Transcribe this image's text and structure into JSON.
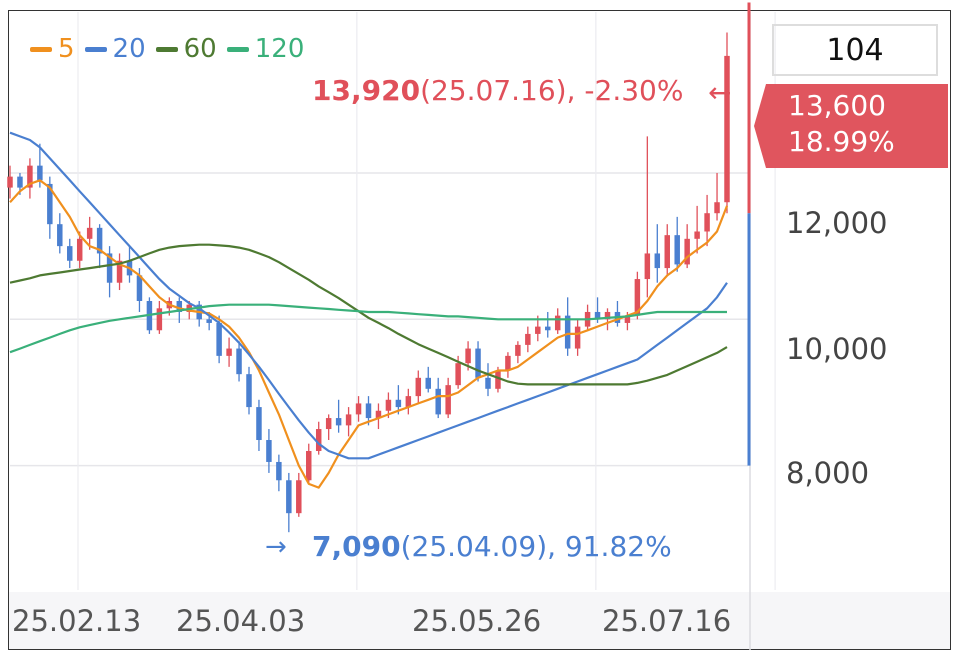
{
  "legend": [
    {
      "label": "5",
      "color": "#f0901e"
    },
    {
      "label": "20",
      "color": "#4a7fd0"
    },
    {
      "label": "60",
      "color": "#4e7a32"
    },
    {
      "label": "120",
      "color": "#3ab07a"
    }
  ],
  "high_annotation": {
    "value": "13,920",
    "detail": "(25.07.16), -2.30%",
    "arrow": "←"
  },
  "low_annotation": {
    "value": "7,090",
    "detail": "(25.04.09), 91.82%",
    "arrow": "→"
  },
  "y_box": "104",
  "price_tag": {
    "price": "13,600",
    "change": "18.99%"
  },
  "y_ticks": [
    "12,000",
    "10,000",
    "8,000"
  ],
  "x_ticks": [
    "25.02.13",
    "25.04.03",
    "25.05.26",
    "25.07.16"
  ],
  "chart_data": {
    "type": "candlestick",
    "x_ticks": [
      "25.02.13",
      "25.04.03",
      "25.05.26",
      "25.07.16"
    ],
    "y_ticks": [
      8000,
      10000,
      12000
    ],
    "ylim": [
      6300,
      14200
    ],
    "high": {
      "value": 13920,
      "date": "25.07.16",
      "change_pct": -2.3
    },
    "low": {
      "value": 7090,
      "date": "25.04.09",
      "change_pct": 91.82
    },
    "last_price": 13600,
    "last_change_pct": 18.99,
    "ohlc": [
      [
        11800,
        12100,
        11650,
        11950
      ],
      [
        11950,
        12000,
        11700,
        11800
      ],
      [
        11800,
        12200,
        11650,
        12100
      ],
      [
        12100,
        12400,
        11800,
        11900
      ],
      [
        11850,
        11950,
        11100,
        11300
      ],
      [
        11300,
        11450,
        10900,
        11000
      ],
      [
        11000,
        11100,
        10700,
        10800
      ],
      [
        10800,
        11200,
        10700,
        11100
      ],
      [
        11100,
        11400,
        10950,
        11250
      ],
      [
        11250,
        11300,
        10700,
        10900
      ],
      [
        10900,
        11000,
        10300,
        10500
      ],
      [
        10500,
        10900,
        10400,
        10800
      ],
      [
        10800,
        11000,
        10500,
        10600
      ],
      [
        10600,
        10700,
        10100,
        10250
      ],
      [
        10250,
        10300,
        9800,
        9850
      ],
      [
        9850,
        10250,
        9800,
        10150
      ],
      [
        10150,
        10300,
        10050,
        10250
      ],
      [
        10250,
        10300,
        9950,
        10100
      ],
      [
        10100,
        10250,
        10000,
        10200
      ],
      [
        10200,
        10250,
        9900,
        10000
      ],
      [
        10000,
        10100,
        9850,
        9950
      ],
      [
        9950,
        10050,
        9400,
        9500
      ],
      [
        9500,
        9750,
        9350,
        9600
      ],
      [
        9600,
        9700,
        9150,
        9250
      ],
      [
        9250,
        9350,
        8700,
        8800
      ],
      [
        8800,
        8900,
        8200,
        8350
      ],
      [
        8350,
        8500,
        7900,
        8050
      ],
      [
        8050,
        8150,
        7650,
        7800
      ],
      [
        7800,
        7900,
        7090,
        7350
      ],
      [
        7350,
        7900,
        7300,
        7800
      ],
      [
        7800,
        8300,
        7750,
        8200
      ],
      [
        8200,
        8600,
        8150,
        8500
      ],
      [
        8500,
        8700,
        8350,
        8650
      ],
      [
        8650,
        8900,
        8450,
        8550
      ],
      [
        8550,
        8800,
        8400,
        8700
      ],
      [
        8700,
        8950,
        8600,
        8850
      ],
      [
        8850,
        8950,
        8550,
        8650
      ],
      [
        8650,
        8850,
        8500,
        8750
      ],
      [
        8750,
        9000,
        8650,
        8900
      ],
      [
        8900,
        9100,
        8700,
        8800
      ],
      [
        8800,
        9050,
        8700,
        8950
      ],
      [
        8950,
        9300,
        8850,
        9200
      ],
      [
        9200,
        9350,
        9000,
        9050
      ],
      [
        9050,
        9200,
        8650,
        8700
      ],
      [
        8700,
        9200,
        8650,
        9100
      ],
      [
        9100,
        9500,
        9050,
        9400
      ],
      [
        9400,
        9700,
        9300,
        9600
      ],
      [
        9600,
        9700,
        9150,
        9200
      ],
      [
        9200,
        9400,
        8950,
        9050
      ],
      [
        9050,
        9350,
        9000,
        9300
      ],
      [
        9300,
        9550,
        9200,
        9500
      ],
      [
        9500,
        9700,
        9400,
        9650
      ],
      [
        9650,
        9900,
        9550,
        9800
      ],
      [
        9800,
        10050,
        9700,
        9900
      ],
      [
        9900,
        10100,
        9750,
        9850
      ],
      [
        9850,
        10150,
        9800,
        10050
      ],
      [
        10050,
        10300,
        9500,
        9600
      ],
      [
        9600,
        10000,
        9500,
        9900
      ],
      [
        9900,
        10200,
        9850,
        10100
      ],
      [
        10100,
        10300,
        9950,
        10000
      ],
      [
        10000,
        10150,
        9850,
        10100
      ],
      [
        10100,
        10250,
        9900,
        9950
      ],
      [
        9950,
        10100,
        9850,
        10050
      ],
      [
        10050,
        10650,
        10000,
        10550
      ],
      [
        10550,
        12500,
        10300,
        10900
      ],
      [
        10900,
        11300,
        10500,
        10700
      ],
      [
        10700,
        11300,
        10600,
        11150
      ],
      [
        11150,
        11400,
        10650,
        10750
      ],
      [
        10750,
        11300,
        10700,
        11100
      ],
      [
        11100,
        11550,
        10900,
        11200
      ],
      [
        11200,
        11700,
        11000,
        11450
      ],
      [
        11450,
        12000,
        11350,
        11600
      ],
      [
        11600,
        13920,
        11450,
        13600
      ]
    ],
    "series": [
      {
        "name": "5",
        "color": "#f0901e",
        "values": [
          11600,
          11750,
          11850,
          11900,
          11800,
          11600,
          11400,
          11150,
          11000,
          10950,
          10850,
          10750,
          10700,
          10600,
          10450,
          10300,
          10200,
          10150,
          10120,
          10100,
          10080,
          10000,
          9900,
          9750,
          9550,
          9300,
          9000,
          8700,
          8350,
          8000,
          7750,
          7700,
          7900,
          8150,
          8350,
          8550,
          8600,
          8650,
          8700,
          8750,
          8800,
          8850,
          8900,
          8950,
          8950,
          9000,
          9100,
          9200,
          9250,
          9300,
          9300,
          9350,
          9450,
          9550,
          9650,
          9750,
          9800,
          9800,
          9850,
          9900,
          9950,
          10000,
          10050,
          10100,
          10250,
          10450,
          10600,
          10700,
          10850,
          10950,
          11050,
          11200,
          11550
        ]
      },
      {
        "name": "20",
        "color": "#4a7fd0",
        "values": [
          12550,
          12500,
          12450,
          12350,
          12200,
          12050,
          11900,
          11750,
          11600,
          11450,
          11300,
          11150,
          11000,
          10850,
          10700,
          10550,
          10420,
          10320,
          10220,
          10150,
          10050,
          9950,
          9820,
          9680,
          9520,
          9350,
          9170,
          8980,
          8800,
          8620,
          8450,
          8300,
          8200,
          8150,
          8100,
          8100,
          8100,
          8150,
          8200,
          8250,
          8300,
          8350,
          8400,
          8450,
          8500,
          8550,
          8600,
          8650,
          8700,
          8750,
          8800,
          8850,
          8900,
          8950,
          9000,
          9050,
          9100,
          9150,
          9200,
          9250,
          9300,
          9350,
          9400,
          9450,
          9550,
          9650,
          9750,
          9850,
          9950,
          10050,
          10150,
          10300,
          10500
        ]
      },
      {
        "name": "60",
        "color": "#4e7a32",
        "values": [
          10500,
          10530,
          10560,
          10600,
          10620,
          10640,
          10660,
          10680,
          10700,
          10720,
          10740,
          10760,
          10800,
          10850,
          10900,
          10950,
          10980,
          11000,
          11010,
          11020,
          11020,
          11010,
          11000,
          10980,
          10950,
          10900,
          10850,
          10780,
          10700,
          10620,
          10540,
          10450,
          10370,
          10290,
          10200,
          10110,
          10020,
          9950,
          9880,
          9800,
          9730,
          9660,
          9600,
          9540,
          9480,
          9420,
          9360,
          9300,
          9250,
          9200,
          9150,
          9120,
          9110,
          9110,
          9110,
          9110,
          9110,
          9110,
          9110,
          9110,
          9110,
          9110,
          9110,
          9130,
          9160,
          9200,
          9240,
          9300,
          9360,
          9420,
          9480,
          9540,
          9620
        ]
      },
      {
        "name": "120",
        "color": "#3ab07a",
        "values": [
          9550,
          9600,
          9650,
          9700,
          9750,
          9800,
          9850,
          9890,
          9920,
          9950,
          9980,
          10000,
          10020,
          10040,
          10060,
          10080,
          10100,
          10120,
          10140,
          10160,
          10180,
          10190,
          10200,
          10200,
          10200,
          10200,
          10200,
          10190,
          10180,
          10170,
          10160,
          10150,
          10140,
          10130,
          10120,
          10110,
          10100,
          10100,
          10100,
          10090,
          10080,
          10070,
          10060,
          10050,
          10040,
          10040,
          10030,
          10020,
          10010,
          10000,
          10000,
          10000,
          10000,
          10000,
          10000,
          10000,
          10000,
          10000,
          10000,
          10010,
          10020,
          10030,
          10040,
          10060,
          10080,
          10100,
          10100,
          10100,
          10100,
          10100,
          10100,
          10100,
          10100
        ]
      }
    ]
  }
}
